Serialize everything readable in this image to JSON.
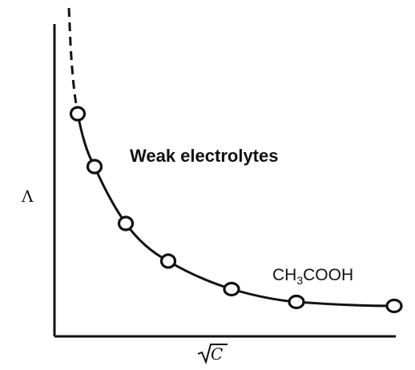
{
  "diagram": {
    "y_axis_label": "Λ",
    "x_axis_label": "C",
    "x_axis_radical": "√",
    "region_label": "Weak electrolytes",
    "curve_label": {
      "prefix": "CH",
      "subscript": "3",
      "suffix": "COOH"
    },
    "colors": {
      "ink": "#111111",
      "background": "#ffffff"
    }
  }
}
